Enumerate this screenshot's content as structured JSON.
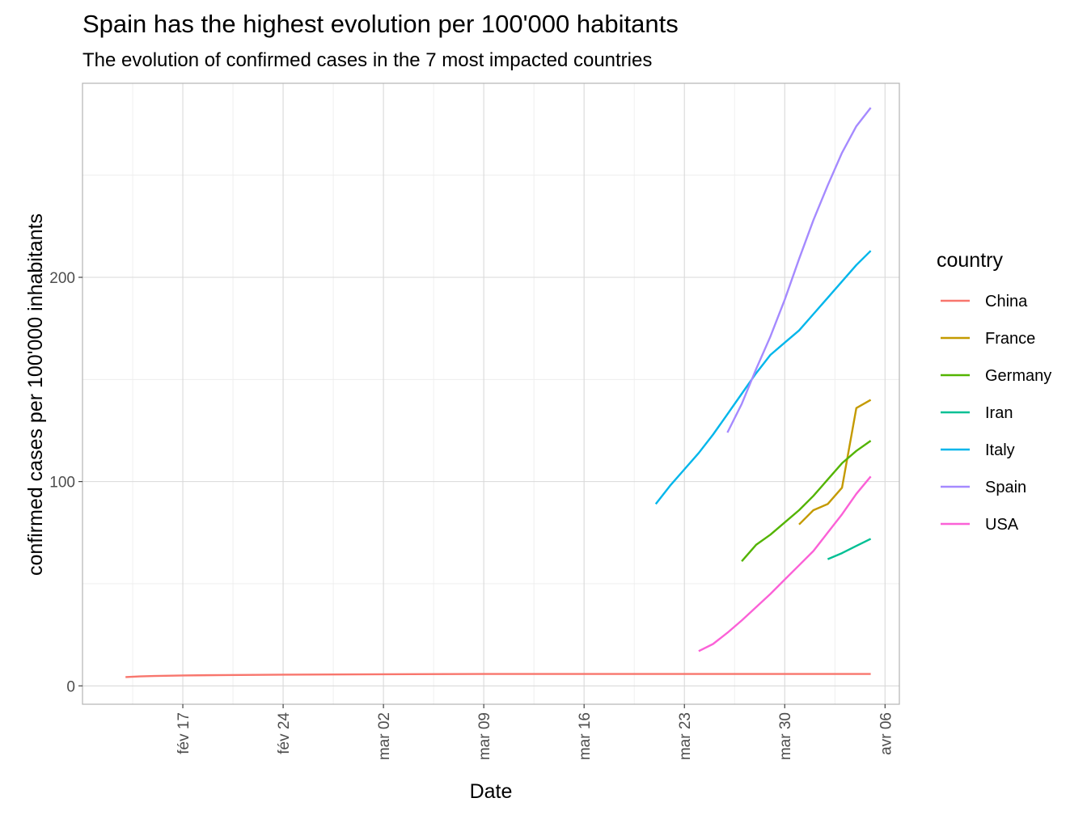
{
  "chart_data": {
    "type": "line",
    "title": "Spain has the highest evolution per 100'000 habitants",
    "subtitle": "The evolution of confirmed cases in the 7 most impacted countries",
    "xlabel": "Date",
    "ylabel": "confirmed cases per 100'000 inhabitants",
    "x_type": "date",
    "xlim": [
      "2020-02-10",
      "2020-04-07"
    ],
    "ylim": [
      -9,
      295
    ],
    "x_ticks": [
      {
        "date": "2020-02-17",
        "label": "fév 17"
      },
      {
        "date": "2020-02-24",
        "label": "fév 24"
      },
      {
        "date": "2020-03-02",
        "label": "mar 02"
      },
      {
        "date": "2020-03-09",
        "label": "mar 09"
      },
      {
        "date": "2020-03-16",
        "label": "mar 16"
      },
      {
        "date": "2020-03-23",
        "label": "mar 23"
      },
      {
        "date": "2020-03-30",
        "label": "mar 30"
      },
      {
        "date": "2020-04-06",
        "label": "avr 06"
      }
    ],
    "y_ticks": [
      0,
      100,
      200
    ],
    "grid": true,
    "legend": {
      "title": "country",
      "position": "right"
    },
    "series": [
      {
        "name": "China",
        "color": "#F8766D",
        "points": [
          [
            "2020-02-13",
            4.3
          ],
          [
            "2020-02-14",
            4.6
          ],
          [
            "2020-02-15",
            4.8
          ],
          [
            "2020-02-17",
            5.1
          ],
          [
            "2020-02-20",
            5.3
          ],
          [
            "2020-02-24",
            5.5
          ],
          [
            "2020-03-02",
            5.7
          ],
          [
            "2020-03-09",
            5.8
          ],
          [
            "2020-03-16",
            5.8
          ],
          [
            "2020-03-23",
            5.8
          ],
          [
            "2020-03-30",
            5.8
          ],
          [
            "2020-04-05",
            5.8
          ]
        ]
      },
      {
        "name": "France",
        "color": "#C49A00",
        "points": [
          [
            "2020-03-31",
            79
          ],
          [
            "2020-04-01",
            86
          ],
          [
            "2020-04-02",
            89
          ],
          [
            "2020-04-03",
            97
          ],
          [
            "2020-04-04",
            136
          ],
          [
            "2020-04-05",
            140
          ]
        ]
      },
      {
        "name": "Germany",
        "color": "#53B400",
        "points": [
          [
            "2020-03-27",
            61
          ],
          [
            "2020-03-28",
            69
          ],
          [
            "2020-03-29",
            74
          ],
          [
            "2020-03-30",
            80
          ],
          [
            "2020-03-31",
            86
          ],
          [
            "2020-04-01",
            93
          ],
          [
            "2020-04-02",
            101
          ],
          [
            "2020-04-03",
            109
          ],
          [
            "2020-04-04",
            115
          ],
          [
            "2020-04-05",
            120
          ]
        ]
      },
      {
        "name": "Iran",
        "color": "#00C094",
        "points": [
          [
            "2020-04-02",
            62
          ],
          [
            "2020-04-03",
            65
          ],
          [
            "2020-04-04",
            68.5
          ],
          [
            "2020-04-05",
            72
          ]
        ]
      },
      {
        "name": "Italy",
        "color": "#00B6EB",
        "points": [
          [
            "2020-03-21",
            89
          ],
          [
            "2020-03-22",
            98
          ],
          [
            "2020-03-23",
            106
          ],
          [
            "2020-03-24",
            114
          ],
          [
            "2020-03-25",
            123
          ],
          [
            "2020-03-26",
            133
          ],
          [
            "2020-03-27",
            143
          ],
          [
            "2020-03-28",
            153
          ],
          [
            "2020-03-29",
            162
          ],
          [
            "2020-03-30",
            168
          ],
          [
            "2020-03-31",
            174
          ],
          [
            "2020-04-01",
            182
          ],
          [
            "2020-04-02",
            190
          ],
          [
            "2020-04-03",
            198
          ],
          [
            "2020-04-04",
            206
          ],
          [
            "2020-04-05",
            213
          ]
        ]
      },
      {
        "name": "Spain",
        "color": "#A58AFF",
        "points": [
          [
            "2020-03-26",
            124
          ],
          [
            "2020-03-27",
            138
          ],
          [
            "2020-03-28",
            155
          ],
          [
            "2020-03-29",
            171
          ],
          [
            "2020-03-30",
            189
          ],
          [
            "2020-03-31",
            209
          ],
          [
            "2020-04-01",
            228
          ],
          [
            "2020-04-02",
            245
          ],
          [
            "2020-04-03",
            261
          ],
          [
            "2020-04-04",
            274
          ],
          [
            "2020-04-05",
            283
          ]
        ]
      },
      {
        "name": "USA",
        "color": "#FB61D7",
        "points": [
          [
            "2020-03-24",
            17
          ],
          [
            "2020-03-25",
            20.5
          ],
          [
            "2020-03-26",
            26
          ],
          [
            "2020-03-27",
            32
          ],
          [
            "2020-03-28",
            38.5
          ],
          [
            "2020-03-29",
            45
          ],
          [
            "2020-03-30",
            52
          ],
          [
            "2020-03-31",
            59
          ],
          [
            "2020-04-01",
            66
          ],
          [
            "2020-04-02",
            75
          ],
          [
            "2020-04-03",
            84
          ],
          [
            "2020-04-04",
            94
          ],
          [
            "2020-04-05",
            102.5
          ]
        ]
      }
    ]
  }
}
